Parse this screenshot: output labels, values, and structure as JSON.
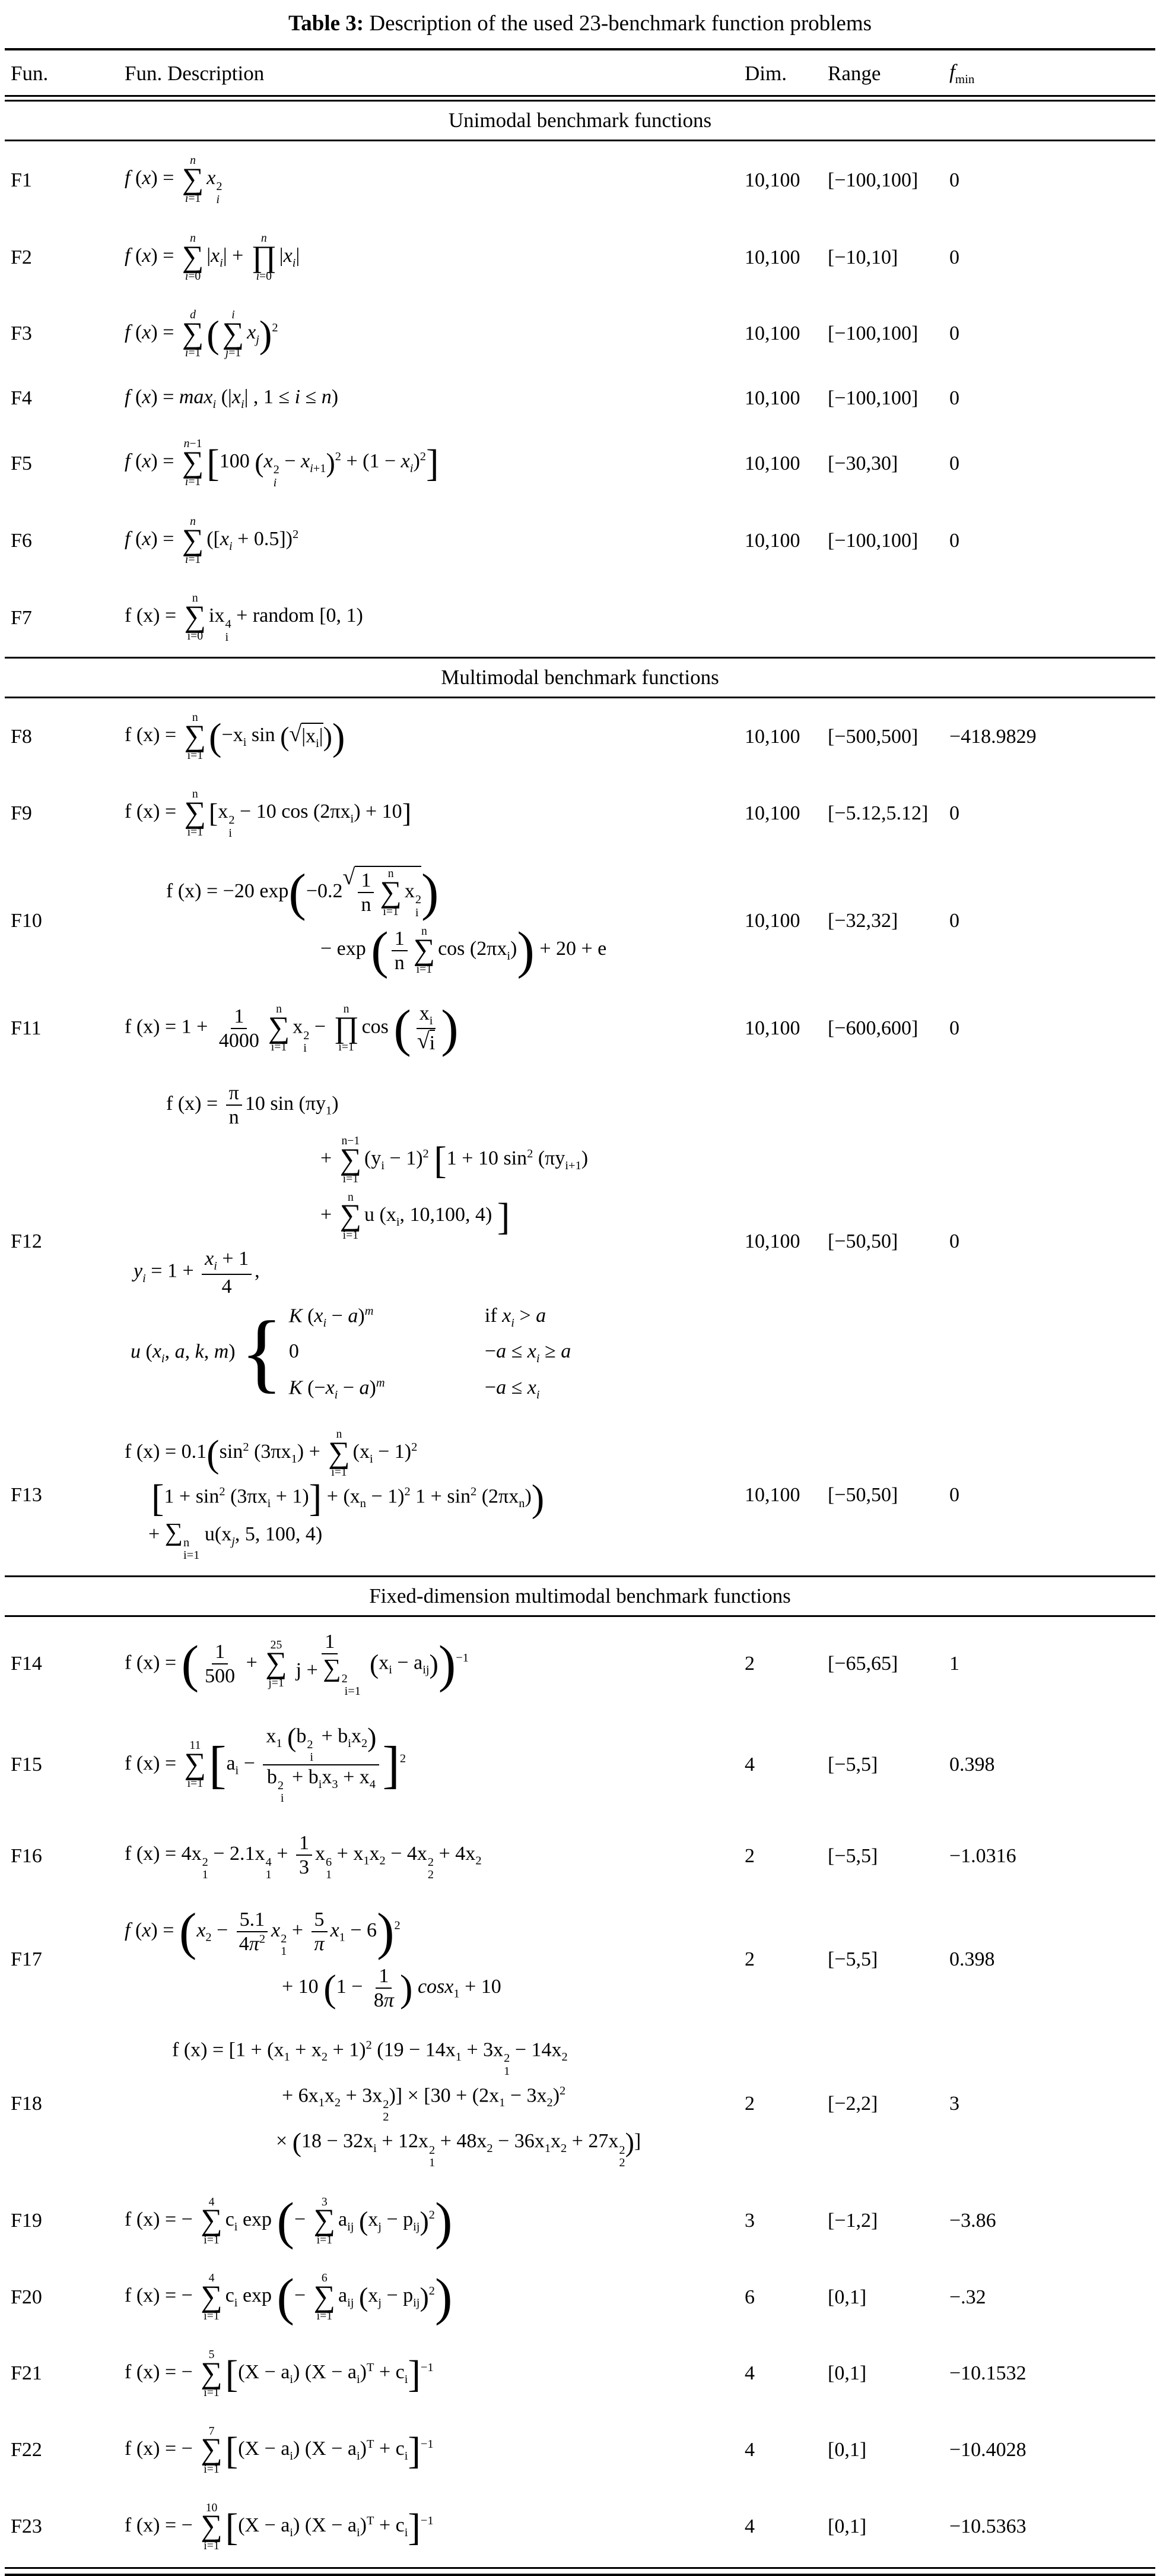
{
  "title": {
    "label": "Table 3:",
    "text": "Description of the used 23-benchmark function problems"
  },
  "columns": {
    "fun": "Fun.",
    "desc": "Fun. Description",
    "dim": "Dim.",
    "range": "Range",
    "fmin_f": "f",
    "fmin_sub": "min"
  },
  "sections": [
    {
      "header": "Unimodal benchmark functions",
      "rows": [
        {
          "id": "F1",
          "dim": "10,100",
          "range": "[−100,100]",
          "fmin": "0",
          "lines": [
            {
              "ind": 0,
              "html": "<i>f</i> (<i>x</i>) = <span class='su'><span class='t'><i>n</i></span><span class='g'>∑</span><span class='b'><i>i</i>=1</span></span><i>x</i><span class='ud'><span class='u'>2</span><span class='d'><i>i</i></span></span>"
            }
          ]
        },
        {
          "id": "F2",
          "dim": "10,100",
          "range": "[−10,10]",
          "fmin": "0",
          "lines": [
            {
              "ind": 0,
              "html": "<i>f</i> (<i>x</i>) = <span class='su'><span class='t'><i>n</i></span><span class='g'>∑</span><span class='b'><i>i</i>=0</span></span>|<i>x<sub>i</sub></i>| + <span class='su'><span class='t'><i>n</i></span><span class='g'>∏</span><span class='b'><i>i</i>=0</span></span>|<i>x<sub>i</sub></i>|"
            }
          ]
        },
        {
          "id": "F3",
          "dim": "10,100",
          "range": "[−100,100]",
          "fmin": "0",
          "lines": [
            {
              "ind": 0,
              "html": "<i>f</i> (<i>x</i>) = <span class='su'><span class='t'><i>d</i></span><span class='g'>∑</span><span class='b'><i>i</i>=1</span></span><span class='b2'>(</span><span class='su'><span class='t'><i>i</i></span><span class='g'>∑</span><span class='b'><i>j</i>=1</span></span><i>x<sub>j</sub></i><span class='b2'>)</span><sup>2</sup>"
            }
          ]
        },
        {
          "id": "F4",
          "dim": "10,100",
          "range": "[−100,100]",
          "fmin": "0",
          "lines": [
            {
              "ind": 0,
              "html": "<i>f</i> (<i>x</i>) = <i>max<sub>i</sub></i> (|<i>x<sub>i</sub></i>| , 1 ≤ <i>i</i> ≤ <i>n</i>)"
            }
          ]
        },
        {
          "id": "F5",
          "dim": "10,100",
          "range": "[−30,30]",
          "fmin": "0",
          "lines": [
            {
              "ind": 0,
              "html": "<i>f</i> (<i>x</i>) = <span class='su'><span class='t'><i>n</i>−1</span><span class='g'>∑</span><span class='b'><i>i</i>=1</span></span><span class='b2'>[</span>100 <span class='b1'>(</span><i>x</i><span class='ud'><span class='u'>2</span><span class='d'><i>i</i></span></span> − <i>x</i><sub><i>i</i>+1</sub><span class='b1'>)</span><sup>2</sup> + (1 − <i>x<sub>i</sub></i>)<sup>2</sup><span class='b2'>]</span>"
            }
          ]
        },
        {
          "id": "F6",
          "dim": "10,100",
          "range": "[−100,100]",
          "fmin": "0",
          "lines": [
            {
              "ind": 0,
              "html": "<i>f</i> (<i>x</i>) = <span class='su'><span class='t'><i>n</i></span><span class='g'>∑</span><span class='b'><i>i</i>=1</span></span>([<i>x<sub>i</sub></i> + 0.5])<sup>2</sup>"
            }
          ]
        },
        {
          "id": "F7",
          "dim": "",
          "range": "",
          "fmin": "",
          "lines": [
            {
              "ind": 0,
              "html": "f (x) = <span class='su'><span class='t'>n</span><span class='g'>∑</span><span class='b'>i=0</span></span>ix<span class='ud'><span class='u'>4</span><span class='d'>i</span></span> + random [0, 1)"
            }
          ]
        }
      ]
    },
    {
      "header": "Multimodal benchmark functions",
      "rows": [
        {
          "id": "F8",
          "dim": "10,100",
          "range": "[−500,500]",
          "fmin": "−418.9829",
          "lines": [
            {
              "ind": 0,
              "html": "f (x) = <span class='su'><span class='t'>n</span><span class='g'>∑</span><span class='b'>i=1</span></span><span class='b2'>(</span>−x<sub>i</sub> sin <span class='b1'>(</span><span class='sq'><span class='r'>√</span><span class='o'>|x<sub>i</sub>|</span></span><span class='b1'>)</span><span class='b2'>)</span>"
            }
          ]
        },
        {
          "id": "F9",
          "dim": "10,100",
          "range": "[−5.12,5.12]",
          "fmin": "0",
          "lines": [
            {
              "ind": 0,
              "html": "f (x) = <span class='su'><span class='t'>n</span><span class='g'>∑</span><span class='b'>i=1</span></span><span class='b1'>[</span>x<span class='ud'><span class='u'>2</span><span class='d'>i</span></span> − 10 cos (2πx<sub>i</sub>) + 10<span class='b1'>]</span>"
            }
          ]
        },
        {
          "id": "F10",
          "dim": "10,100",
          "range": "[−32,32]",
          "fmin": "0",
          "lines": [
            {
              "ind": 70,
              "html": "f (x) = −20 exp<span class='b3'>(</span>−0.2<span class='sq'><span class='r'>√</span><span class='o'><span class='fr'><span class='n'>1</span><span class='d'>n</span></span><span class='su'><span class='t'>n</span><span class='g'>∑</span><span class='b'>i=1</span></span>x<span class='ud'><span class='u'>2</span><span class='d'>i</span></span></span></span><span class='b3'>)</span>"
            },
            {
              "ind": 330,
              "html": "− exp <span class='b3'>(</span><span class='fr'><span class='n'>1</span><span class='d'>n</span></span><span class='su'><span class='t'>n</span><span class='g'>∑</span><span class='b'>i=1</span></span>cos (2πx<sub>i</sub>)<span class='b3'>)</span> + 20 + e"
            }
          ]
        },
        {
          "id": "F11",
          "dim": "10,100",
          "range": "[−600,600]",
          "fmin": "0",
          "lines": [
            {
              "ind": 0,
              "html": "f (x) = 1 + <span class='fr'><span class='n'>1</span><span class='d'>4000</span></span><span class='su'><span class='t'>n</span><span class='g'>∑</span><span class='b'>i=1</span></span>x<span class='ud'><span class='u'>2</span><span class='d'>i</span></span> − <span class='su'><span class='t'>n</span><span class='g'>∏</span><span class='b'>i=1</span></span>cos <span class='b3'>(</span><span class='fr'><span class='n'>x<sub>i</sub></span><span class='d'><span class='sq'><span class='r'>√</span><span class='o'>i</span></span></span></span><span class='b3'>)</span>"
            }
          ]
        },
        {
          "id": "F12",
          "dim": "10,100",
          "range": "[−50,50]",
          "fmin": "0",
          "lines": [
            {
              "ind": 70,
              "html": "f (x) = <span class='fr'><span class='n'>π</span><span class='d'>n</span></span>10 sin (πy<sub>1</sub>)"
            },
            {
              "ind": 330,
              "html": "+ <span class='su'><span class='t'>n−1</span><span class='g'>∑</span><span class='b'>i=1</span></span>(y<sub>i</sub> − 1)<sup>2</sup> <span class='b2'>[</span>1 + 10 sin<sup>2</sup> (πy<sub>i+1</sub>)"
            },
            {
              "ind": 330,
              "html": "+ <span class='su'><span class='t'>n</span><span class='g'>∑</span><span class='b'>i=1</span></span>u (x<sub>i</sub>, 10,100, 4) <span class='b2'>]</span>"
            },
            {
              "ind": 15,
              "html": "<i>y<sub>i</sub></i> = 1 + <span class='fr'><span class='n'><i>x<sub>i</sub></i> + 1</span><span class='d'>4</span></span>,"
            },
            {
              "ind": 10,
              "html": "<i>u</i> (<i>x<sub>i</sub></i>, <i>a</i>, <i>k</i>, <i>m</i>) <span class='brace'>{</span><span class='cases'><span class='case'><span class='lhs'><i>K</i> (<i>x<sub>i</sub></i> − <i>a</i>)<sup><i>m</i></sup></span><span class='rhs'>if <i>x<sub>i</sub></i> &gt; <i>a</i></span></span><span class='case'><span class='lhs'>0</span><span class='rhs'>−<i>a</i> ≤ <i>x<sub>i</sub></i> ≥ <i>a</i></span></span><span class='case'><span class='lhs'><i>K</i> (−<i>x<sub>i</sub></i> − <i>a</i>)<sup><i>m</i></sup></span><span class='rhs'>−<i>a</i> ≤ <i>x<sub>i</sub></i></span></span></span>"
            }
          ]
        },
        {
          "id": "F13",
          "dim": "10,100",
          "range": "[−50,50]",
          "fmin": "0",
          "lines": [
            {
              "ind": 0,
              "html": "f (x) = 0.1<span class='b2'>(</span>sin<sup>2</sup> (3πx<sub>1</sub>) + <span class='su'><span class='t'>n</span><span class='g'>∑</span><span class='b'>i=1</span></span>(x<sub>i</sub> − 1)<sup>2</sup>"
            },
            {
              "ind": 45,
              "html": "<span class='b2'>[</span>1 + sin<sup>2</sup> (3πx<sub>i</sub> + 1)<span class='b2'>]</span> + (x<sub>n</sub> − 1)<sup>2</sup> 1 + sin<sup>2</sup> (2πx<sub>n</sub>)<span class='b2'>)</span>"
            },
            {
              "ind": 40,
              "html": "+ <span class='g2'>∑</span><span class='ud'><span class='u'>n</span><span class='d'>i=1</span></span> u(x<sub><i>j</i></sub>, 5, 100, 4)"
            }
          ]
        }
      ]
    },
    {
      "header": "Fixed-dimension multimodal benchmark functions",
      "rows": [
        {
          "id": "F14",
          "dim": "2",
          "range": "[−65,65]",
          "fmin": "1",
          "lines": [
            {
              "ind": 0,
              "html": "f (x) = <span class='b3'>(</span><span class='fr'><span class='n'>1</span><span class='d'>500</span></span> + <span class='su'><span class='t'>25</span><span class='g'>∑</span><span class='b'>j=1</span></span><span class='fr'><span class='n'>1</span><span class='d'>j + <span class='g2'>∑</span><span class='ud'><span class='u'>2</span><span class='d'>i=1</span></span></span></span><span class='b1'>(</span>x<sub>i</sub> − a<sub>ij</sub><span class='b1'>)</span><span class='b3'>)</span><sup>−1</sup>"
            }
          ]
        },
        {
          "id": "F15",
          "dim": "4",
          "range": "[−5,5]",
          "fmin": "0.398",
          "lines": [
            {
              "ind": 0,
              "html": "f (x) = <span class='su'><span class='t'>11</span><span class='g'>∑</span><span class='b'>i=1</span></span><span class='b3'>[</span>a<sub>i</sub> − <span class='fr'><span class='n'>x<sub>1</sub> <span class='b1'>(</span>b<span class='ud'><span class='u'>2</span><span class='d'>i</span></span> + b<sub>i</sub>x<sub>2</sub><span class='b1'>)</span></span><span class='d'>b<span class='ud'><span class='u'>2</span><span class='d'>i</span></span> + b<sub>i</sub>x<sub>3</sub> + x<sub>4</sub></span></span><span class='b3'>]</span><sup>2</sup>"
            }
          ]
        },
        {
          "id": "F16",
          "dim": "2",
          "range": "[−5,5]",
          "fmin": "−1.0316",
          "lines": [
            {
              "ind": 0,
              "html": "f (x) = 4x<span class='ud'><span class='u'>2</span><span class='d'>1</span></span> − 2.1x<span class='ud'><span class='u'>4</span><span class='d'>1</span></span> + <span class='fr'><span class='n'>1</span><span class='d'>3</span></span>x<span class='ud'><span class='u'>6</span><span class='d'>1</span></span> + x<sub>1</sub>x<sub>2</sub> − 4x<span class='ud'><span class='u'>2</span><span class='d'>2</span></span> + 4x<sub>2</sub>"
            }
          ]
        },
        {
          "id": "F17",
          "dim": "2",
          "range": "[−5,5]",
          "fmin": "0.398",
          "lines": [
            {
              "ind": 0,
              "html": "<i>f</i> (<i>x</i>) = <span class='b3'>(</span><i>x</i><sub>2</sub> − <span class='fr'><span class='n'>5.1</span><span class='d'>4<i>π</i><sup>2</sup></span></span><i>x</i><span class='ud'><span class='u'>2</span><span class='d'>1</span></span> + <span class='fr'><span class='n'>5</span><span class='d'><i>π</i></span></span><i>x</i><sub>1</sub> − 6<span class='b3'>)</span><sup>2</sup>"
            },
            {
              "ind": 265,
              "html": "+ 10 <span class='b2'>(</span>1 − <span class='fr'><span class='n'>1</span><span class='d'>8<i>π</i></span></span><span class='b2'>)</span> <i>cosx</i><sub>1</sub> + 10"
            }
          ]
        },
        {
          "id": "F18",
          "dim": "2",
          "range": "[−2,2]",
          "fmin": "3",
          "lines": [
            {
              "ind": 80,
              "html": "f (x) = [1 + (x<sub>1</sub> + x<sub>2</sub> + 1)<sup>2</sup> (19 − 14x<sub>1</sub> + 3x<span class='ud'><span class='u'>2</span><span class='d'>1</span></span> − 14x<sub>2</sub>"
            },
            {
              "ind": 265,
              "html": "+ 6x<sub>1</sub>x<sub>2</sub> + 3x<span class='ud'><span class='u'>2</span><span class='d'>2</span></span>)] × [30 + (2x<sub>1</sub> − 3x<sub>2</sub>)<sup>2</sup>"
            },
            {
              "ind": 255,
              "html": "× <span class='b1'>(</span>18 − 32x<sub>i</sub> + 12x<span class='ud'><span class='u'>2</span><span class='d'>1</span></span> + 48x<sub>2</sub> − 36x<sub>1</sub>x<sub>2</sub> + 27x<span class='ud'><span class='u'>2</span><span class='d'>2</span></span><span class='b1'>)</span>]"
            }
          ]
        },
        {
          "id": "F19",
          "dim": "3",
          "range": "[−1,2]",
          "fmin": "−3.86",
          "lines": [
            {
              "ind": 0,
              "html": "f (x) = − <span class='su'><span class='t'>4</span><span class='g'>∑</span><span class='b'>i=1</span></span>c<sub>i</sub> exp <span class='b3'>(</span>− <span class='su'><span class='t'>3</span><span class='g'>∑</span><span class='b'>i=1</span></span>a<sub>ij</sub> <span class='b1'>(</span>x<sub>j</sub> − p<sub>ij</sub><span class='b1'>)</span><sup>2</sup><span class='b3'>)</span>"
            }
          ]
        },
        {
          "id": "F20",
          "dim": "6",
          "range": "[0,1]",
          "fmin": "−.32",
          "lines": [
            {
              "ind": 0,
              "html": "f (x) = − <span class='su'><span class='t'>4</span><span class='g'>∑</span><span class='b'>i=1</span></span>c<sub>i</sub> exp <span class='b3'>(</span>− <span class='su'><span class='t'>6</span><span class='g'>∑</span><span class='b'>i=1</span></span>a<sub>ij</sub> <span class='b1'>(</span>x<sub>j</sub> − p<sub>ij</sub><span class='b1'>)</span><sup>2</sup><span class='b3'>)</span>"
            }
          ]
        },
        {
          "id": "F21",
          "dim": "4",
          "range": "[0,1]",
          "fmin": "−10.1532",
          "lines": [
            {
              "ind": 0,
              "html": "f (x) = − <span class='su'><span class='t'>5</span><span class='g'>∑</span><span class='b'>i=1</span></span><span class='b2'>[</span>(X − a<sub>i</sub>) (X − a<sub>i</sub>)<sup>T</sup> + c<sub>i</sub><span class='b2'>]</span><sup>−1</sup>"
            }
          ]
        },
        {
          "id": "F22",
          "dim": "4",
          "range": "[0,1]",
          "fmin": "−10.4028",
          "lines": [
            {
              "ind": 0,
              "html": "f (x) = − <span class='su'><span class='t'>7</span><span class='g'>∑</span><span class='b'>i=1</span></span><span class='b2'>[</span>(X − a<sub>i</sub>) (X − a<sub>i</sub>)<sup>T</sup> + c<sub>i</sub><span class='b2'>]</span><sup>−1</sup>"
            }
          ]
        },
        {
          "id": "F23",
          "dim": "4",
          "range": "[0,1]",
          "fmin": "−10.5363",
          "lines": [
            {
              "ind": 0,
              "html": "f (x) = − <span class='su'><span class='t'>10</span><span class='g'>∑</span><span class='b'>i=1</span></span><span class='b2'>[</span>(X − a<sub>i</sub>) (X − a<sub>i</sub>)<sup>T</sup> + c<sub>i</sub><span class='b2'>]</span><sup>−1</sup>"
            }
          ]
        }
      ]
    }
  ]
}
